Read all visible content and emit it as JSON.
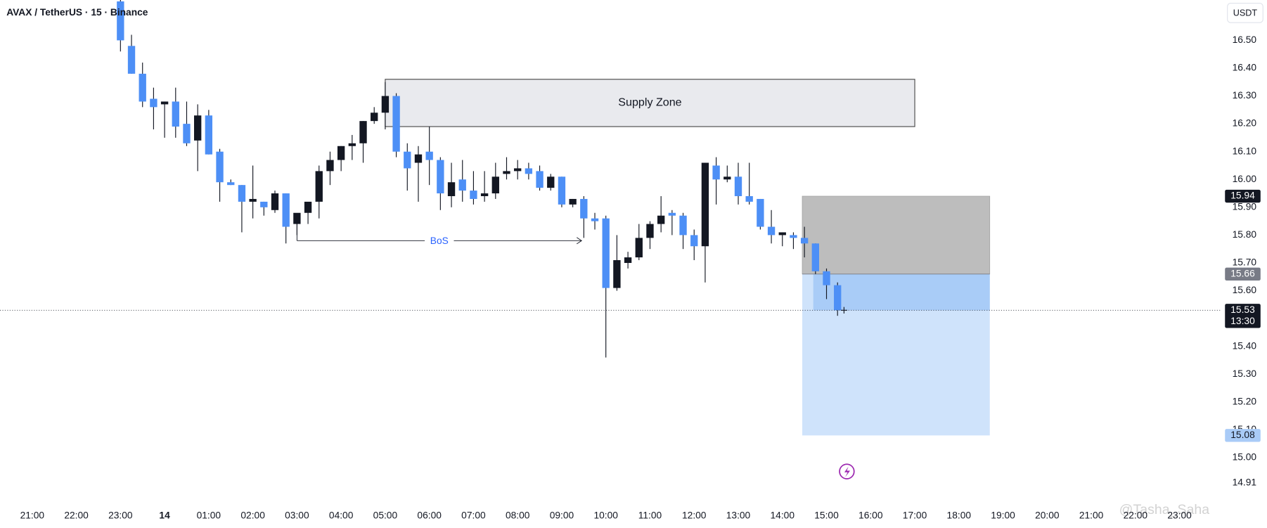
{
  "chart_data": {
    "type": "candlestick",
    "title": "AVAX / TetherUS · 15 · Binance",
    "currency": "USDT",
    "countdown": "13:30",
    "last_price": 15.53,
    "up_color": "#131722",
    "down_color": "#4d8ff6",
    "xlim": [
      -0.73,
      26.92
    ],
    "ylim": [
      14.846,
      16.645
    ],
    "xticks": [
      {
        "value": 0,
        "label": "21:00"
      },
      {
        "value": 1,
        "label": "22:00"
      },
      {
        "value": 2,
        "label": "23:00"
      },
      {
        "value": 3,
        "label": "14"
      },
      {
        "value": 4,
        "label": "01:00"
      },
      {
        "value": 5,
        "label": "02:00"
      },
      {
        "value": 6,
        "label": "03:00"
      },
      {
        "value": 7,
        "label": "04:00"
      },
      {
        "value": 8,
        "label": "05:00"
      },
      {
        "value": 9,
        "label": "06:00"
      },
      {
        "value": 10,
        "label": "07:00"
      },
      {
        "value": 11,
        "label": "08:00"
      },
      {
        "value": 12,
        "label": "09:00"
      },
      {
        "value": 13,
        "label": "10:00"
      },
      {
        "value": 14,
        "label": "11:00"
      },
      {
        "value": 15,
        "label": "12:00"
      },
      {
        "value": 16,
        "label": "13:00"
      },
      {
        "value": 17,
        "label": "14:00"
      },
      {
        "value": 18,
        "label": "15:00"
      },
      {
        "value": 19,
        "label": "16:00"
      },
      {
        "value": 20,
        "label": "17:00"
      },
      {
        "value": 21,
        "label": "18:00"
      },
      {
        "value": 22,
        "label": "19:00"
      },
      {
        "value": 23,
        "label": "20:00"
      },
      {
        "value": 24,
        "label": "21:00"
      },
      {
        "value": 25,
        "label": "22:00"
      },
      {
        "value": 26,
        "label": "23:00"
      }
    ],
    "yticks": [
      {
        "value": 16.5,
        "label": "16.50"
      },
      {
        "value": 16.4,
        "label": "16.40"
      },
      {
        "value": 16.3,
        "label": "16.30"
      },
      {
        "value": 16.2,
        "label": "16.20"
      },
      {
        "value": 16.1,
        "label": "16.10"
      },
      {
        "value": 16,
        "label": "16.00"
      },
      {
        "value": 15.9,
        "label": "15.90"
      },
      {
        "value": 15.8,
        "label": "15.80"
      },
      {
        "value": 15.7,
        "label": "15.70"
      },
      {
        "value": 15.6,
        "label": "15.60"
      },
      {
        "value": 15.4,
        "label": "15.40"
      },
      {
        "value": 15.3,
        "label": "15.30"
      },
      {
        "value": 15.2,
        "label": "15.20"
      },
      {
        "value": 15.1,
        "label": "15.10"
      },
      {
        "value": 15,
        "label": "15.00"
      },
      14.91
    ],
    "candles": {
      "x": [
        2,
        2.25,
        2.5,
        2.75,
        3,
        3.25,
        3.5,
        3.75,
        4,
        4.25,
        4.5,
        4.75,
        5,
        5.25,
        5.5,
        5.75,
        6,
        6.25,
        6.5,
        6.75,
        7,
        7.25,
        7.5,
        7.75,
        8,
        8.25,
        8.5,
        8.75,
        9,
        9.25,
        9.5,
        9.75,
        10,
        10.25,
        10.5,
        10.75,
        11,
        11.25,
        11.5,
        11.75,
        12,
        12.25,
        12.5,
        12.75,
        13,
        13.25,
        13.5,
        13.75,
        14,
        14.25,
        14.5,
        14.75,
        15,
        15.25,
        15.5,
        15.75,
        16,
        16.25,
        16.5,
        16.75,
        17,
        17.25,
        17.5,
        17.75,
        18,
        18.25
      ],
      "open": [
        16.64,
        16.48,
        16.38,
        16.29,
        16.27,
        16.28,
        16.2,
        16.14,
        16.23,
        16.1,
        15.99,
        15.98,
        15.92,
        15.92,
        15.89,
        15.95,
        15.84,
        15.88,
        15.92,
        16.03,
        16.07,
        16.12,
        16.13,
        16.21,
        16.24,
        16.3,
        16.1,
        16.06,
        16.1,
        16.07,
        15.94,
        16,
        15.96,
        15.94,
        15.95,
        16.02,
        16.03,
        16.04,
        16.03,
        15.97,
        16.01,
        15.91,
        15.93,
        15.86,
        15.86,
        15.61,
        15.7,
        15.72,
        15.79,
        15.84,
        15.88,
        15.87,
        15.8,
        15.76,
        16.05,
        16,
        16.01,
        15.94,
        15.93,
        15.83,
        15.8,
        15.8,
        15.79,
        15.77,
        15.67,
        15.62
      ],
      "high": [
        16.66,
        16.52,
        16.42,
        16.33,
        16.28,
        16.33,
        16.28,
        16.27,
        16.25,
        16.11,
        16,
        15.98,
        16.05,
        15.92,
        15.96,
        15.95,
        15.87,
        15.91,
        16.05,
        16.1,
        16.12,
        16.16,
        16.21,
        16.26,
        16.35,
        16.31,
        16.13,
        16.12,
        16.19,
        16.08,
        16.06,
        16.07,
        16.03,
        16.03,
        16.06,
        16.08,
        16.07,
        16.06,
        16.05,
        16.02,
        16.01,
        15.93,
        15.94,
        15.88,
        15.87,
        15.8,
        15.74,
        15.84,
        15.85,
        15.94,
        15.89,
        15.88,
        15.82,
        16.06,
        16.08,
        16.05,
        16.06,
        16.06,
        15.93,
        15.89,
        15.81,
        15.81,
        15.83,
        15.77,
        15.68,
        15.63
      ],
      "low": [
        16.46,
        16.38,
        16.26,
        16.18,
        16.15,
        16.15,
        16.12,
        16.03,
        16.09,
        15.92,
        15.98,
        15.81,
        15.86,
        15.87,
        15.88,
        15.77,
        15.8,
        15.84,
        15.86,
        15.98,
        16.03,
        16.07,
        16.06,
        16.2,
        16.18,
        16.08,
        15.96,
        15.92,
        15.98,
        15.89,
        15.9,
        15.92,
        15.91,
        15.92,
        15.93,
        16,
        16,
        16,
        15.96,
        15.96,
        15.9,
        15.9,
        15.79,
        15.82,
        15.36,
        15.6,
        15.68,
        15.71,
        15.75,
        15.81,
        15.8,
        15.75,
        15.71,
        15.63,
        15.91,
        15.99,
        15.91,
        15.91,
        15.82,
        15.77,
        15.76,
        15.75,
        15.72,
        15.66,
        15.57,
        15.51
      ],
      "close": [
        16.5,
        16.38,
        16.28,
        16.26,
        16.28,
        16.19,
        16.13,
        16.23,
        16.09,
        15.99,
        15.98,
        15.92,
        15.93,
        15.9,
        15.95,
        15.83,
        15.88,
        15.92,
        16.03,
        16.07,
        16.12,
        16.13,
        16.21,
        16.24,
        16.3,
        16.1,
        16.04,
        16.09,
        16.07,
        15.95,
        15.99,
        15.96,
        15.93,
        15.95,
        16.01,
        16.03,
        16.04,
        16.02,
        15.97,
        16.01,
        15.91,
        15.93,
        15.86,
        15.85,
        15.61,
        15.71,
        15.72,
        15.79,
        15.84,
        15.87,
        15.87,
        15.8,
        15.76,
        16.06,
        16,
        16.01,
        15.94,
        15.92,
        15.83,
        15.8,
        15.81,
        15.79,
        15.77,
        15.67,
        15.62,
        15.53
      ]
    },
    "supply_zone": {
      "label": "Supply Zone",
      "x": [
        8,
        20
      ],
      "y": [
        16.19,
        16.36
      ]
    },
    "bos": {
      "label": "BoS",
      "x": [
        6,
        12.45
      ],
      "y": 15.78
    },
    "position": {
      "x": [
        17.45,
        21.7
      ],
      "stop": 15.94,
      "entry": 15.66,
      "target": 15.08
    }
  },
  "watermark": "@Tasha_Saha"
}
